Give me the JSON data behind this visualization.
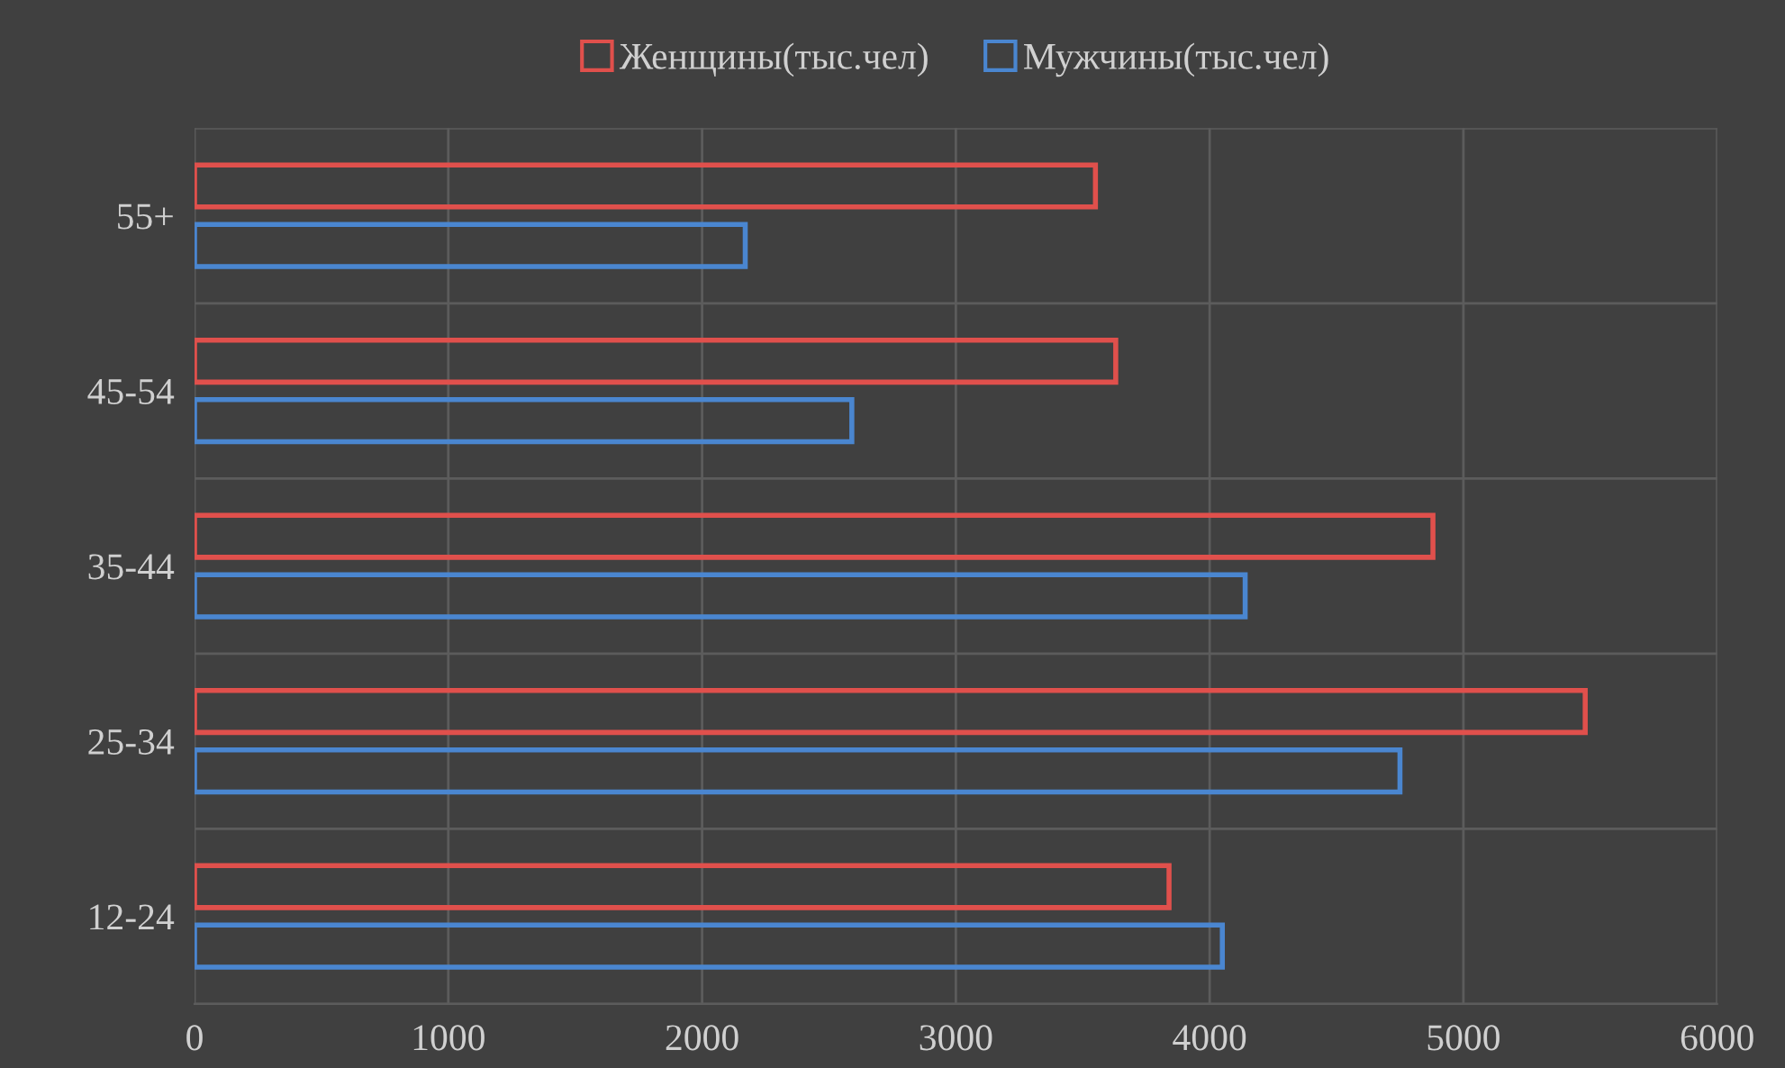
{
  "chart_data": {
    "type": "bar",
    "orientation": "horizontal",
    "categories": [
      "55+",
      "45-54",
      "35-44",
      "25-34",
      "12-24"
    ],
    "series": [
      {
        "name": "Женщины(тыс.чел)",
        "color": "#e0504c",
        "values": [
          3550,
          3630,
          4880,
          5480,
          3840
        ]
      },
      {
        "name": "Мужчины(тыс.чел)",
        "color": "#4a86d0",
        "values": [
          2170,
          2590,
          4140,
          4750,
          4050
        ]
      }
    ],
    "xlim": [
      0,
      6000
    ],
    "xticks": [
      0,
      1000,
      2000,
      3000,
      4000,
      5000,
      6000
    ],
    "grid": true,
    "legend": "top"
  }
}
